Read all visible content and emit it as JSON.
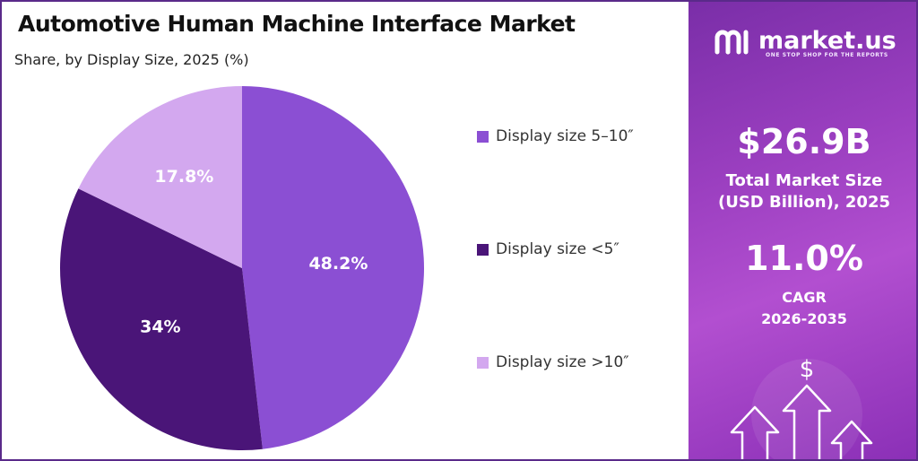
{
  "title": "Automotive Human Machine Interface Market",
  "subtitle": "Share, by  Display Size, 2025 (%)",
  "chart_data": {
    "type": "pie",
    "title": "Automotive Human Machine Interface Market",
    "subtitle": "Share, by  Display Size, 2025 (%)",
    "legend_position": "right",
    "slices": [
      {
        "label": "Display size 5–10″",
        "value": 48.2,
        "value_label": "48.2%",
        "color": "#8b4fd3"
      },
      {
        "label": "Display size <5″",
        "value": 34,
        "value_label": "34%",
        "color": "#4a1578"
      },
      {
        "label": "Display size >10″",
        "value": 17.8,
        "value_label": "17.8%",
        "color": "#d3a8ef"
      }
    ]
  },
  "brand": {
    "name": "market.us",
    "tagline": "ONE STOP SHOP FOR THE REPORTS"
  },
  "stats": {
    "market_size_value": "$26.9B",
    "market_size_label_1": "Total Market Size",
    "market_size_label_2": "(USD Billion), 2025",
    "cagr_value": "11.0%",
    "cagr_label_1": "CAGR",
    "cagr_label_2": "2026-2035"
  },
  "decoration": {
    "currency_symbol": "$"
  }
}
